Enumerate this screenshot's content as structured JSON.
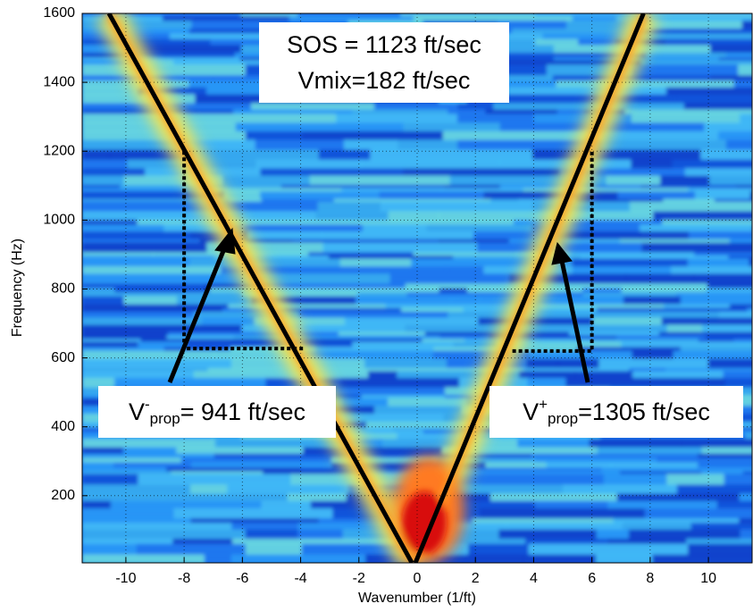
{
  "chart_data": {
    "type": "line",
    "x_label": "Wavenumber (1/ft)",
    "y_label": "Frequency (Hz)",
    "xlim": [
      -11.5,
      11.5
    ],
    "ylim": [
      5,
      1600
    ],
    "xticks": [
      -10,
      -8,
      -6,
      -4,
      -2,
      0,
      2,
      4,
      6,
      8,
      10
    ],
    "yticks": [
      200,
      400,
      600,
      800,
      1000,
      1200,
      1400,
      1600
    ],
    "grid": true,
    "series": [
      {
        "color": "#000000",
        "linestyle": "solid",
        "x": [
          -10.58,
          -0.18
        ],
        "values": [
          1600,
          5
        ]
      },
      {
        "color": "#000000",
        "linestyle": "solid",
        "x": [
          -0.06,
          7.77
        ],
        "values": [
          5,
          1600
        ]
      },
      {
        "color": "#000000",
        "linestyle": "dotted",
        "x": [
          -8,
          -8,
          -3.9
        ],
        "values": [
          1200,
          627,
          627
        ]
      },
      {
        "color": "#000000",
        "linestyle": "dotted",
        "x": [
          3.27,
          6,
          6
        ],
        "values": [
          620,
          620,
          1200
        ]
      }
    ],
    "annotations": {
      "sos": "SOS = 1123 ft/sec",
      "vmix": "Vmix=182 ft/sec",
      "left": {
        "base": "V",
        "sup": "-",
        "sub": "prop",
        "rest": "= 941 ft/sec"
      },
      "right": {
        "base": "V",
        "sup": "+",
        "sub": "prop",
        "rest": "=1305 ft/sec"
      }
    }
  }
}
